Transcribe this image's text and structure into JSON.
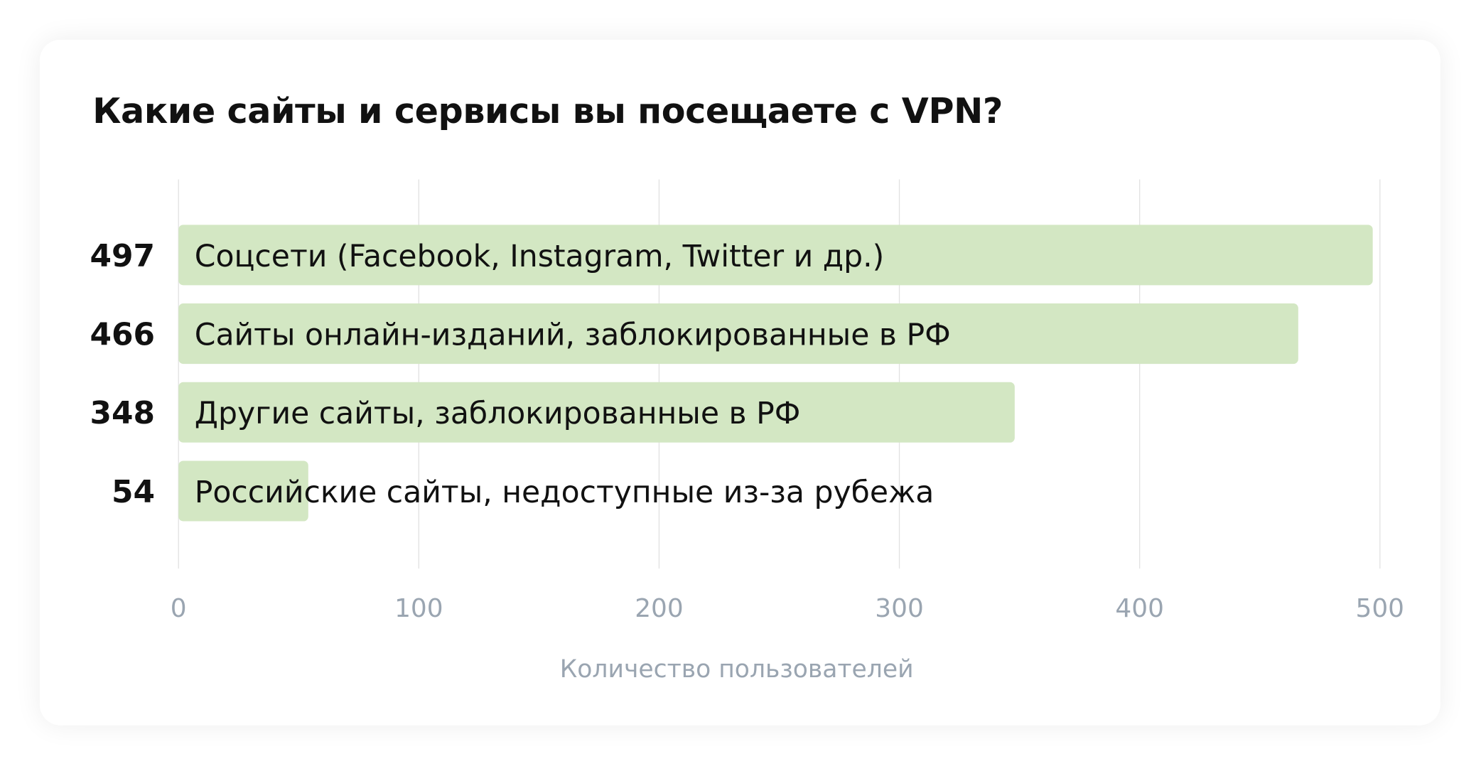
{
  "chart_data": {
    "type": "bar",
    "orientation": "horizontal",
    "title": "Какие сайты и сервисы вы посещаете с VPN?",
    "xlabel": "Количество пользователей",
    "ylabel": "",
    "categories": [
      "Соцсети (Facebook, Instagram, Twitter и др.)",
      "Сайты онлайн-изданий, заблокированные в РФ",
      "Другие сайты, заблокированные в РФ",
      "Российские сайты, недоступные из-за рубежа"
    ],
    "values": [
      497,
      466,
      348,
      54
    ],
    "xlim": [
      0,
      500
    ],
    "xticks": [
      0,
      100,
      200,
      300,
      400,
      500
    ],
    "grid": "vertical",
    "colors": {
      "bar": "#d3e7c3",
      "grid": "#e2e2e2",
      "tick": "#9aa5b1",
      "text": "#111111"
    }
  }
}
